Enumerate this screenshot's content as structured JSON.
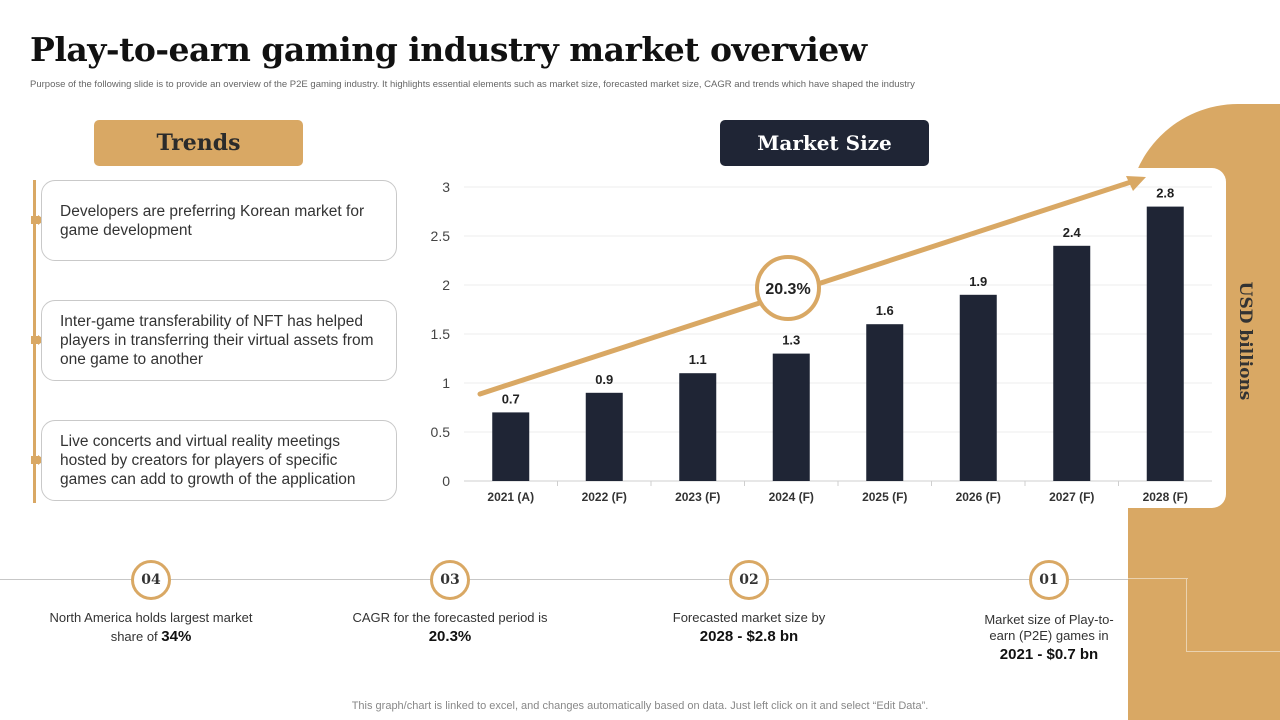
{
  "header": {
    "title": "Play-to-earn gaming industry market overview",
    "subtitle": "Purpose of the following slide is to provide an overview of the P2E gaming industry. It highlights essential elements such as market size, forecasted market size, CAGR and trends which have shaped the industry"
  },
  "trends": {
    "heading": "Trends",
    "items": [
      "Developers are preferring Korean market for game development",
      "Inter-game transferability  of NFT has helped players in transferring their virtual assets from one game to another",
      "Live concerts and virtual reality  meetings hosted by creators for players of specific games can add to growth  of the application"
    ]
  },
  "market": {
    "heading": "Market Size",
    "unit": "USD billions",
    "cagr_label": "20.3%"
  },
  "colors": {
    "accent": "#d9a864",
    "bar": "#1f2535"
  },
  "chart_data": {
    "type": "bar",
    "categories": [
      "2021 (A)",
      "2022 (F)",
      "2023 (F)",
      "2024 (F)",
      "2025 (F)",
      "2026 (F)",
      "2027 (F)",
      "2028 (F)"
    ],
    "values": [
      0.7,
      0.9,
      1.1,
      1.3,
      1.6,
      1.9,
      2.4,
      2.8
    ],
    "value_labels": [
      "0.7",
      "0.9",
      "1.1",
      "1.3",
      "1.6",
      "1.9",
      "2.4",
      "2.8"
    ],
    "ylim": [
      0,
      3
    ],
    "yticks": [
      "0",
      "0.5",
      "1",
      "1.5",
      "2",
      "2.5",
      "3"
    ],
    "grid": true,
    "annotation": "20.3%"
  },
  "stats": [
    {
      "num": "04",
      "text": "North America holds largest market share of ",
      "bold": "34%"
    },
    {
      "num": "03",
      "text": "CAGR for the forecasted period is ",
      "bold": "20.3%"
    },
    {
      "num": "02",
      "text": "Forecasted market size by ",
      "bold": "2028 - $2.8 bn"
    },
    {
      "num": "01",
      "text": "Market size of Play-to-earn (P2E) games in ",
      "bold": "2021 - $0.7 bn"
    }
  ],
  "footer": "This graph/chart is linked to excel,  and changes automatically based on data. Just left click on it and select “Edit Data”."
}
